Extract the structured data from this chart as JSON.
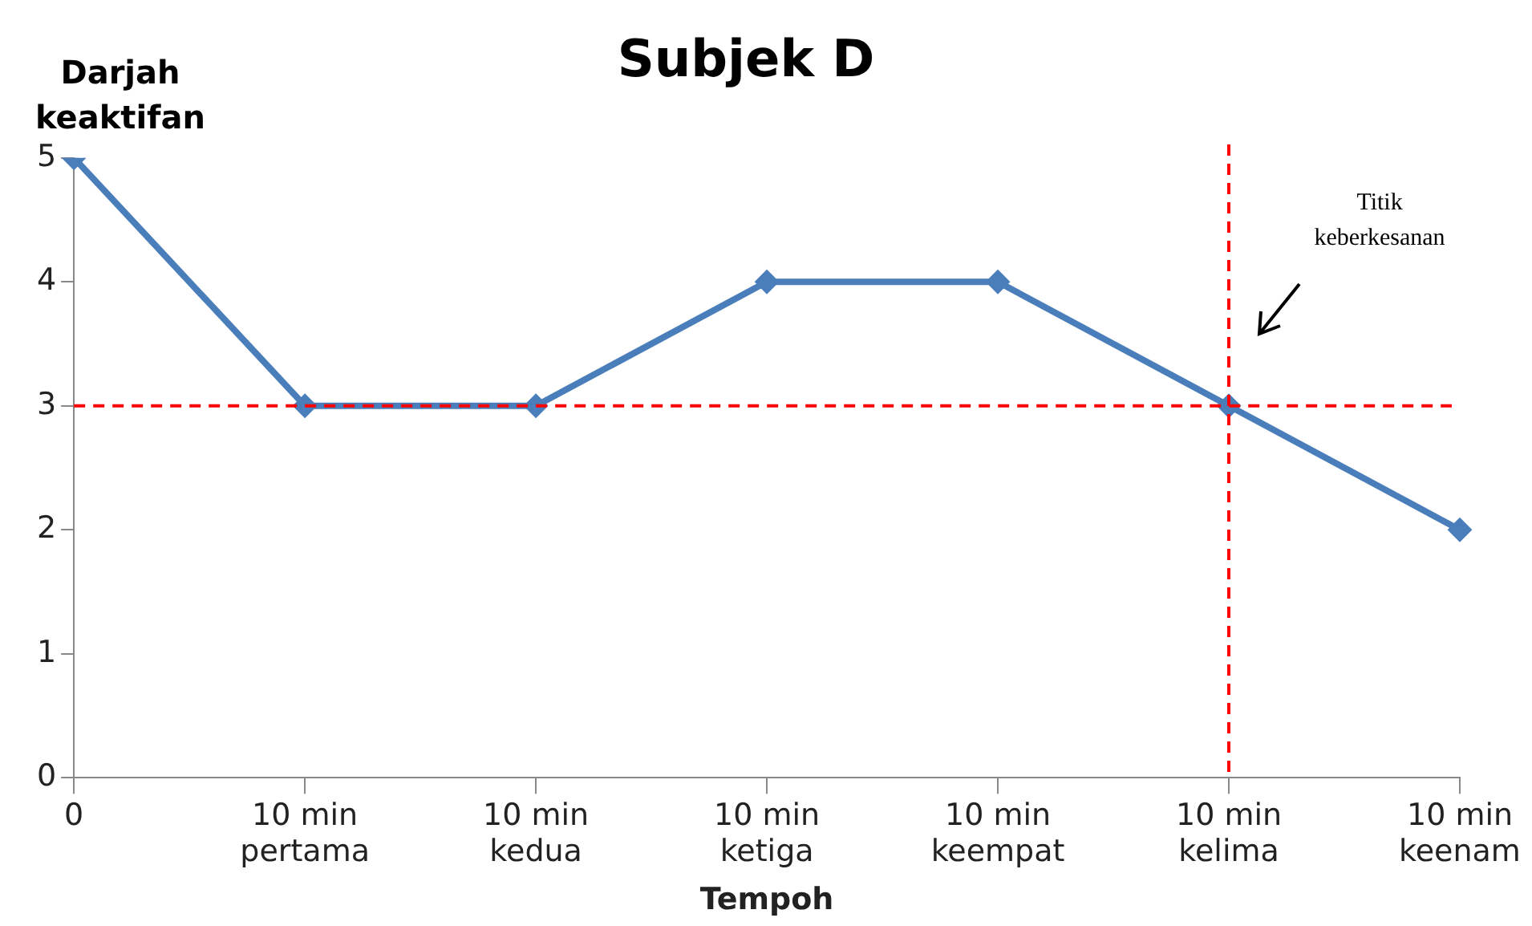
{
  "chart_data": {
    "type": "line",
    "title": "Subjek D",
    "xlabel": "Tempoh",
    "ylabel": "Darjah keaktifan",
    "categories": [
      "0",
      "10 min pertama",
      "10 min kedua",
      "10 min ketiga",
      "10 min keempat",
      "10 min kelima",
      "10 min keenam"
    ],
    "series": [
      {
        "color": "#4a7ebb",
        "values": [
          5,
          3,
          3,
          4,
          4,
          3,
          2
        ]
      }
    ],
    "ylim": [
      0,
      5
    ],
    "yticks": [
      0,
      1,
      2,
      3,
      4,
      5
    ],
    "grid": false,
    "legend": false,
    "marker": "diamond",
    "line_style": "solid",
    "ref_lines": [
      {
        "axis": "y",
        "value": 3,
        "color": "#ff0000",
        "line_style": "dashed"
      },
      {
        "axis": "x",
        "value": "10 min kelima",
        "color": "#ff0000",
        "line_style": "dashed"
      }
    ],
    "annotations": [
      "Titik keberkesanan"
    ]
  }
}
